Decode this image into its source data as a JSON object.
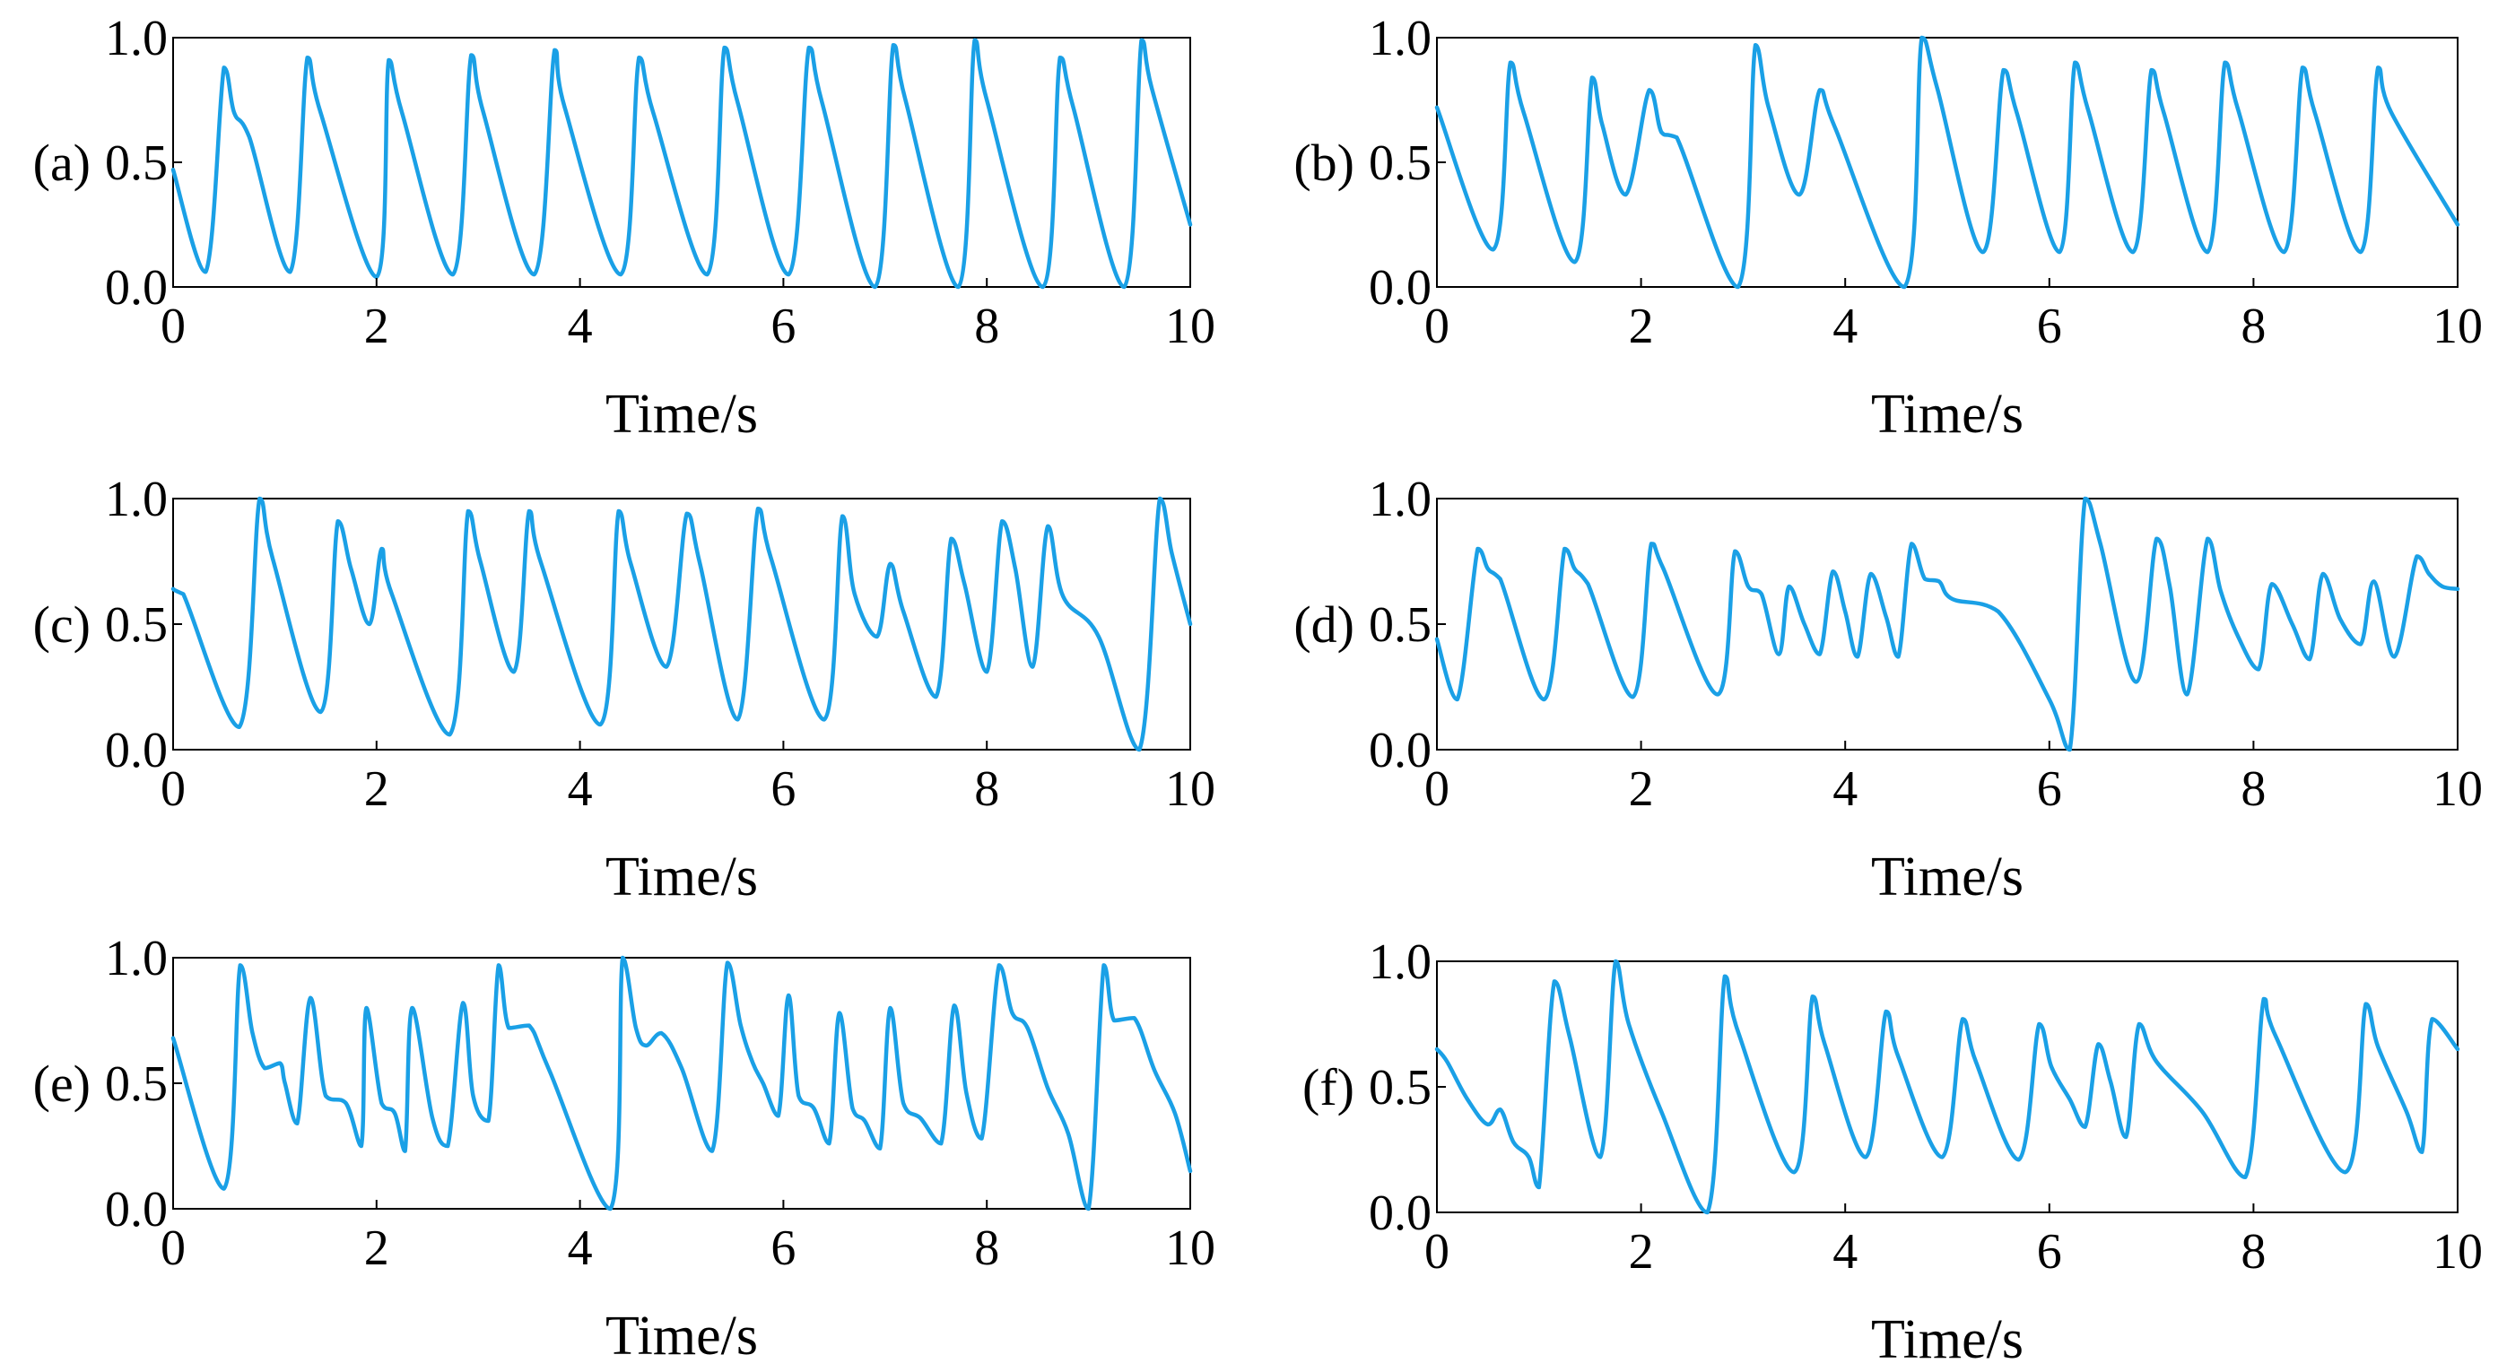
{
  "colors": {
    "series": "#1aa0e6",
    "axes": "#000000",
    "background": "#ffffff"
  },
  "chart_data": [
    {
      "panel": "(a)",
      "type": "line",
      "xlabel": "Time/s",
      "ylabel": "",
      "xlim": [
        0,
        10
      ],
      "ylim": [
        0,
        1
      ],
      "xticks": [
        "0",
        "2",
        "4",
        "6",
        "8",
        "10"
      ],
      "yticks": [
        "0.0",
        "0.5",
        "1.0"
      ],
      "series": [
        {
          "x": [
            0,
            0.32,
            0.5,
            0.6,
            0.75,
            1.15,
            1.32,
            1.45,
            2.0,
            2.12,
            2.25,
            2.75,
            2.93,
            3.05,
            3.55,
            3.75,
            3.85,
            4.4,
            4.58,
            4.72,
            5.25,
            5.42,
            5.55,
            6.05,
            6.25,
            6.38,
            6.9,
            7.08,
            7.2,
            7.72,
            7.88,
            8.0,
            8.55,
            8.72,
            8.85,
            9.35,
            9.52,
            9.62,
            10.0
          ],
          "y": [
            0.47,
            0.06,
            0.88,
            0.7,
            0.6,
            0.06,
            0.92,
            0.7,
            0.04,
            0.91,
            0.7,
            0.05,
            0.93,
            0.7,
            0.05,
            0.95,
            0.72,
            0.05,
            0.92,
            0.7,
            0.05,
            0.96,
            0.74,
            0.05,
            0.96,
            0.74,
            0.0,
            0.97,
            0.75,
            0.0,
            0.99,
            0.75,
            0.0,
            0.92,
            0.72,
            0.0,
            0.99,
            0.8,
            0.25
          ]
        }
      ]
    },
    {
      "panel": "(b)",
      "type": "line",
      "xlabel": "Time/s",
      "ylabel": "",
      "xlim": [
        0,
        10
      ],
      "ylim": [
        0,
        1
      ],
      "xticks": [
        "0",
        "2",
        "4",
        "6",
        "8",
        "10"
      ],
      "yticks": [
        "0.0",
        "0.5",
        "1.0"
      ],
      "series": [
        {
          "x": [
            0,
            0.55,
            0.72,
            0.85,
            1.35,
            1.52,
            1.62,
            1.85,
            2.08,
            2.2,
            2.35,
            2.95,
            3.12,
            3.25,
            3.55,
            3.75,
            3.9,
            4.58,
            4.75,
            4.9,
            5.35,
            5.55,
            5.68,
            6.1,
            6.25,
            6.38,
            6.82,
            7.0,
            7.12,
            7.55,
            7.72,
            7.85,
            8.3,
            8.48,
            8.6,
            9.05,
            9.22,
            9.35,
            10.0
          ],
          "y": [
            0.72,
            0.15,
            0.9,
            0.7,
            0.1,
            0.84,
            0.65,
            0.37,
            0.79,
            0.62,
            0.6,
            0.0,
            0.97,
            0.72,
            0.37,
            0.79,
            0.64,
            0.0,
            1.0,
            0.8,
            0.14,
            0.87,
            0.7,
            0.14,
            0.9,
            0.71,
            0.14,
            0.87,
            0.7,
            0.14,
            0.9,
            0.71,
            0.14,
            0.88,
            0.7,
            0.14,
            0.88,
            0.7,
            0.25
          ]
        }
      ]
    },
    {
      "panel": "(c)",
      "type": "line",
      "xlabel": "Time/s",
      "ylabel": "",
      "xlim": [
        0,
        10
      ],
      "ylim": [
        0,
        1
      ],
      "xticks": [
        "0",
        "2",
        "4",
        "6",
        "8",
        "10"
      ],
      "yticks": [
        "0.0",
        "0.5",
        "1.0"
      ],
      "series": [
        {
          "x": [
            0,
            0.1,
            0.65,
            0.85,
            0.98,
            1.45,
            1.62,
            1.75,
            1.93,
            2.05,
            2.15,
            2.72,
            2.9,
            3.02,
            3.35,
            3.5,
            3.62,
            4.2,
            4.38,
            4.5,
            4.85,
            5.05,
            5.18,
            5.55,
            5.75,
            5.88,
            6.4,
            6.58,
            6.7,
            6.92,
            7.05,
            7.18,
            7.5,
            7.65,
            7.78,
            8.0,
            8.15,
            8.28,
            8.45,
            8.6,
            8.75,
            9.1,
            9.5,
            9.7,
            9.82,
            10.0
          ],
          "y": [
            0.64,
            0.62,
            0.09,
            1.0,
            0.76,
            0.15,
            0.91,
            0.72,
            0.5,
            0.8,
            0.62,
            0.06,
            0.95,
            0.75,
            0.31,
            0.95,
            0.74,
            0.1,
            0.95,
            0.74,
            0.33,
            0.94,
            0.74,
            0.12,
            0.96,
            0.76,
            0.12,
            0.93,
            0.62,
            0.45,
            0.74,
            0.55,
            0.21,
            0.84,
            0.66,
            0.31,
            0.91,
            0.72,
            0.33,
            0.89,
            0.61,
            0.45,
            0.0,
            1.0,
            0.78,
            0.5
          ]
        }
      ]
    },
    {
      "panel": "(d)",
      "type": "line",
      "xlabel": "Time/s",
      "ylabel": "",
      "xlim": [
        0,
        10
      ],
      "ylim": [
        0,
        1
      ],
      "xticks": [
        "0",
        "2",
        "4",
        "6",
        "8",
        "10"
      ],
      "yticks": [
        "0.0",
        "0.5",
        "1.0"
      ],
      "series": [
        {
          "x": [
            0,
            0.2,
            0.4,
            0.5,
            0.62,
            1.05,
            1.25,
            1.35,
            1.48,
            1.92,
            2.1,
            2.22,
            2.75,
            2.92,
            3.05,
            3.18,
            3.35,
            3.45,
            3.6,
            3.75,
            3.88,
            4.0,
            4.12,
            4.25,
            4.4,
            4.52,
            4.65,
            4.78,
            4.92,
            5.05,
            5.5,
            6.0,
            6.2,
            6.35,
            6.5,
            6.85,
            7.05,
            7.18,
            7.35,
            7.55,
            7.68,
            7.85,
            8.05,
            8.18,
            8.38,
            8.55,
            8.68,
            8.85,
            9.05,
            9.18,
            9.38,
            9.6,
            9.72,
            9.85,
            10.0
          ],
          "y": [
            0.44,
            0.2,
            0.8,
            0.72,
            0.68,
            0.2,
            0.8,
            0.72,
            0.66,
            0.21,
            0.82,
            0.72,
            0.22,
            0.79,
            0.65,
            0.62,
            0.38,
            0.65,
            0.5,
            0.38,
            0.71,
            0.55,
            0.37,
            0.7,
            0.53,
            0.37,
            0.82,
            0.68,
            0.67,
            0.6,
            0.55,
            0.2,
            0.0,
            1.0,
            0.82,
            0.27,
            0.84,
            0.65,
            0.22,
            0.84,
            0.63,
            0.45,
            0.32,
            0.66,
            0.5,
            0.36,
            0.7,
            0.52,
            0.42,
            0.67,
            0.37,
            0.77,
            0.7,
            0.65,
            0.64
          ]
        }
      ]
    },
    {
      "panel": "(e)",
      "type": "line",
      "xlabel": "Time/s",
      "ylabel": "",
      "xlim": [
        0,
        10
      ],
      "ylim": [
        0,
        1
      ],
      "xticks": [
        "0",
        "2",
        "4",
        "6",
        "8",
        "10"
      ],
      "yticks": [
        "0.0",
        "0.5",
        "1.0"
      ],
      "series": [
        {
          "x": [
            0,
            0.5,
            0.66,
            0.78,
            0.9,
            1.05,
            1.1,
            1.22,
            1.35,
            1.5,
            1.7,
            1.85,
            1.9,
            2.05,
            2.18,
            2.28,
            2.35,
            2.55,
            2.7,
            2.85,
            2.95,
            3.1,
            3.2,
            3.3,
            3.5,
            3.7,
            4.3,
            4.42,
            4.55,
            4.65,
            4.8,
            5.0,
            5.3,
            5.45,
            5.58,
            5.7,
            5.8,
            5.95,
            6.05,
            6.15,
            6.3,
            6.45,
            6.55,
            6.68,
            6.8,
            6.95,
            7.05,
            7.18,
            7.35,
            7.55,
            7.68,
            7.8,
            7.95,
            8.12,
            8.25,
            8.4,
            8.6,
            8.8,
            9.0,
            9.15,
            9.25,
            9.45,
            9.65,
            9.85,
            10.0
          ],
          "y": [
            0.68,
            0.08,
            0.97,
            0.7,
            0.56,
            0.58,
            0.5,
            0.34,
            0.84,
            0.45,
            0.42,
            0.25,
            0.8,
            0.42,
            0.38,
            0.23,
            0.8,
            0.36,
            0.25,
            0.82,
            0.45,
            0.35,
            0.97,
            0.72,
            0.73,
            0.55,
            0.0,
            1.0,
            0.72,
            0.65,
            0.7,
            0.56,
            0.23,
            0.98,
            0.73,
            0.58,
            0.5,
            0.37,
            0.85,
            0.45,
            0.4,
            0.26,
            0.78,
            0.4,
            0.35,
            0.24,
            0.8,
            0.42,
            0.36,
            0.26,
            0.81,
            0.46,
            0.28,
            0.97,
            0.78,
            0.72,
            0.48,
            0.3,
            0.0,
            0.97,
            0.75,
            0.76,
            0.55,
            0.38,
            0.15
          ]
        }
      ]
    },
    {
      "panel": "(f)",
      "type": "line",
      "xlabel": "Time/s",
      "ylabel": "",
      "xlim": [
        0,
        10
      ],
      "ylim": [
        0,
        1
      ],
      "xticks": [
        "0",
        "2",
        "4",
        "6",
        "8",
        "10"
      ],
      "yticks": [
        "0.0",
        "0.5",
        "1.0"
      ],
      "series": [
        {
          "x": [
            0,
            0.1,
            0.3,
            0.5,
            0.62,
            0.75,
            0.9,
            1.0,
            1.15,
            1.3,
            1.6,
            1.75,
            1.88,
            2.2,
            2.65,
            2.82,
            2.95,
            3.5,
            3.68,
            3.8,
            4.2,
            4.4,
            4.52,
            4.95,
            5.15,
            5.28,
            5.7,
            5.9,
            6.02,
            6.2,
            6.35,
            6.48,
            6.6,
            6.75,
            6.88,
            7.05,
            7.5,
            7.92,
            8.1,
            8.22,
            8.9,
            9.1,
            9.22,
            9.5,
            9.65,
            9.75,
            10.0
          ],
          "y": [
            0.65,
            0.6,
            0.45,
            0.35,
            0.41,
            0.28,
            0.22,
            0.1,
            0.92,
            0.7,
            0.22,
            1.0,
            0.75,
            0.4,
            0.0,
            0.94,
            0.72,
            0.16,
            0.86,
            0.67,
            0.22,
            0.8,
            0.62,
            0.22,
            0.77,
            0.6,
            0.21,
            0.75,
            0.58,
            0.45,
            0.34,
            0.67,
            0.52,
            0.3,
            0.75,
            0.6,
            0.4,
            0.14,
            0.85,
            0.7,
            0.16,
            0.83,
            0.66,
            0.4,
            0.24,
            0.77,
            0.65
          ]
        }
      ]
    }
  ]
}
